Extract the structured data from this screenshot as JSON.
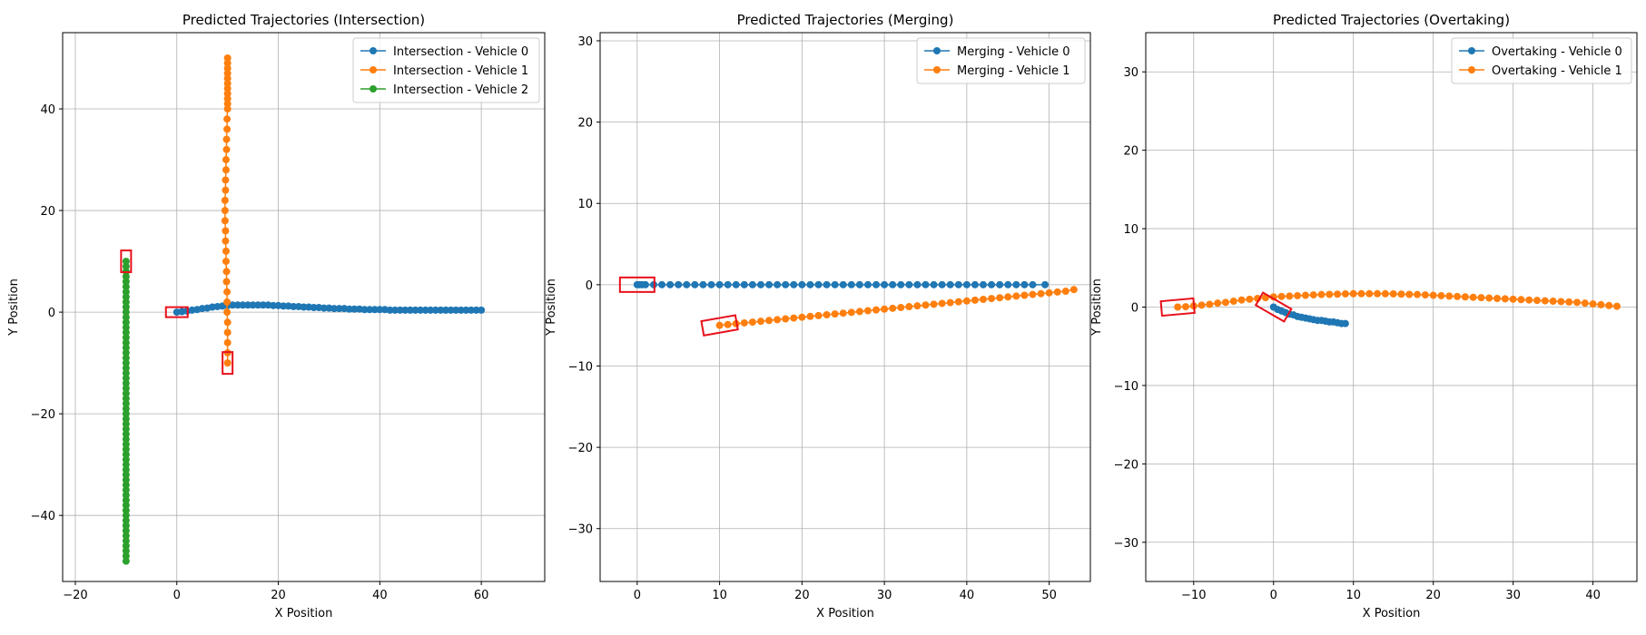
{
  "chart_data": [
    {
      "type": "scatter",
      "title": "Predicted Trajectories (Intersection)",
      "xlabel": "X Position",
      "ylabel": "Y Position",
      "xlim": [
        -22.5,
        72.5
      ],
      "ylim": [
        -53,
        55
      ],
      "xticks": [
        -20,
        0,
        20,
        40,
        60
      ],
      "yticks": [
        -40,
        -20,
        0,
        20,
        40
      ],
      "grid": true,
      "legend_position": "upper right",
      "series": [
        {
          "name": "Intersection - Vehicle 0",
          "color": "#1f77b4",
          "x": [
            0,
            1,
            2,
            3,
            4,
            5,
            6,
            7,
            8,
            9,
            10,
            11,
            12,
            13,
            14,
            15,
            16,
            17,
            18,
            19,
            20,
            21,
            22,
            23,
            24,
            25,
            26,
            27,
            28,
            29,
            30,
            31,
            32,
            33,
            34,
            35,
            36,
            37,
            38,
            39,
            40,
            41,
            42,
            43,
            44,
            45,
            46,
            47,
            48,
            49,
            50,
            51,
            52,
            53,
            54,
            55,
            56,
            57,
            58,
            59,
            60
          ],
          "y": [
            0,
            0.1,
            0.2,
            0.4,
            0.5,
            0.7,
            0.8,
            1.0,
            1.1,
            1.2,
            1.3,
            1.4,
            1.4,
            1.4,
            1.4,
            1.4,
            1.4,
            1.4,
            1.4,
            1.3,
            1.3,
            1.2,
            1.2,
            1.1,
            1.1,
            1.0,
            1.0,
            0.9,
            0.9,
            0.8,
            0.8,
            0.7,
            0.7,
            0.7,
            0.6,
            0.6,
            0.6,
            0.5,
            0.5,
            0.5,
            0.5,
            0.5,
            0.4,
            0.4,
            0.4,
            0.4,
            0.4,
            0.4,
            0.4,
            0.4,
            0.4,
            0.4,
            0.4,
            0.4,
            0.4,
            0.4,
            0.4,
            0.4,
            0.4,
            0.4,
            0.4
          ]
        },
        {
          "name": "Intersection - Vehicle 1",
          "color": "#ff7f0e",
          "x": [
            10.0,
            10.0,
            10.0,
            10.0,
            10.0,
            9.9,
            9.9,
            9.9,
            9.8,
            9.8,
            9.7,
            9.7,
            9.6,
            9.6,
            9.5,
            9.5,
            9.5,
            9.6,
            9.6,
            9.7,
            9.7,
            9.8,
            9.8,
            9.9,
            9.9,
            10.0,
            10.0,
            10.0,
            10.0,
            10.0,
            10.0,
            10.0,
            10.0,
            10.0,
            10.0,
            10.0
          ],
          "y": [
            -10,
            -8,
            -6,
            -4,
            -2,
            0,
            2,
            4,
            6,
            8,
            10,
            12,
            14,
            16,
            18,
            20,
            22,
            24,
            26,
            28,
            30,
            32,
            34,
            36,
            38,
            40,
            41,
            42,
            43,
            44,
            45,
            46,
            47,
            48,
            49,
            50
          ]
        },
        {
          "name": "Intersection - Vehicle 2",
          "color": "#2ca02c",
          "x": [
            -10,
            -10,
            -10,
            -10,
            -10,
            -10,
            -10,
            -10,
            -10,
            -10,
            -10,
            -10,
            -10,
            -10,
            -10,
            -10,
            -10,
            -10,
            -10,
            -10,
            -10,
            -10,
            -10,
            -10,
            -10,
            -10,
            -10,
            -10,
            -10,
            -10,
            -10,
            -10,
            -10,
            -10,
            -10,
            -10,
            -10,
            -10,
            -10,
            -10,
            -10,
            -10,
            -10,
            -10,
            -10,
            -10,
            -10,
            -10,
            -10,
            -10,
            -10,
            -10,
            -10,
            -10,
            -10,
            -10,
            -10,
            -10,
            -10,
            -10
          ],
          "y": [
            10,
            9,
            8,
            7,
            6,
            5,
            4,
            3,
            2,
            1,
            0,
            -1,
            -2,
            -3,
            -4,
            -5,
            -6,
            -7,
            -8,
            -9,
            -10,
            -11,
            -12,
            -13,
            -14,
            -15,
            -16,
            -17,
            -18,
            -19,
            -20,
            -21,
            -22,
            -23,
            -24,
            -25,
            -26,
            -27,
            -28,
            -29,
            -30,
            -31,
            -32,
            -33,
            -34,
            -35,
            -36,
            -37,
            -38,
            -39,
            -40,
            -41,
            -42,
            -43,
            -44,
            -45,
            -46,
            -47,
            -48,
            -49
          ]
        }
      ],
      "boxes": [
        {
          "cx": 0,
          "cy": 0,
          "angle": 0
        },
        {
          "cx": 10,
          "cy": -10,
          "angle": 90
        },
        {
          "cx": -10,
          "cy": 10,
          "angle": 90
        }
      ]
    },
    {
      "type": "scatter",
      "title": "Predicted Trajectories (Merging)",
      "xlabel": "X Position",
      "ylabel": "Y Position",
      "xlim": [
        -4.5,
        55
      ],
      "ylim": [
        -36.5,
        31
      ],
      "xticks": [
        0,
        10,
        20,
        30,
        40,
        50
      ],
      "yticks": [
        -30,
        -20,
        -10,
        0,
        10,
        20,
        30
      ],
      "grid": true,
      "legend_position": "upper right",
      "series": [
        {
          "name": "Merging - Vehicle 0",
          "color": "#1f77b4",
          "x": [
            0,
            0.3,
            0.6,
            1,
            2,
            3,
            4,
            5,
            6,
            7,
            8,
            9,
            10,
            11,
            12,
            13,
            14,
            15,
            16,
            17,
            18,
            19,
            20,
            21,
            22,
            23,
            24,
            25,
            26,
            27,
            28,
            29,
            30,
            31,
            32,
            33,
            34,
            35,
            36,
            37,
            38,
            39,
            40,
            41,
            42,
            43,
            44,
            45,
            46,
            47,
            48,
            49.5
          ],
          "y": [
            0,
            0,
            0,
            0,
            0,
            0,
            0,
            0,
            0,
            0,
            0,
            0,
            0,
            0,
            0,
            0,
            0,
            0,
            0,
            0,
            0,
            0,
            0,
            0,
            0,
            0,
            0,
            0,
            0,
            0,
            0,
            0,
            0,
            0,
            0,
            0,
            0,
            0,
            0,
            0,
            0,
            0,
            0,
            0,
            0,
            0,
            0,
            0,
            0,
            0,
            0,
            0
          ]
        },
        {
          "name": "Merging - Vehicle 1",
          "color": "#ff7f0e",
          "x": [
            10,
            11,
            12,
            13,
            14,
            15,
            16,
            17,
            18,
            19,
            20,
            21,
            22,
            23,
            24,
            25,
            26,
            27,
            28,
            29,
            30,
            31,
            32,
            33,
            34,
            35,
            36,
            37,
            38,
            39,
            40,
            41,
            42,
            43,
            44,
            45,
            46,
            47,
            48,
            49,
            50,
            51,
            52,
            53
          ],
          "y": [
            -5.0,
            -4.9,
            -4.8,
            -4.7,
            -4.6,
            -4.5,
            -4.4,
            -4.3,
            -4.2,
            -4.1,
            -4.0,
            -3.9,
            -3.8,
            -3.7,
            -3.6,
            -3.5,
            -3.4,
            -3.3,
            -3.2,
            -3.1,
            -3.0,
            -2.9,
            -2.8,
            -2.7,
            -2.6,
            -2.5,
            -2.4,
            -2.3,
            -2.2,
            -2.1,
            -2.0,
            -1.9,
            -1.8,
            -1.7,
            -1.6,
            -1.5,
            -1.4,
            -1.3,
            -1.2,
            -1.1,
            -1.0,
            -0.9,
            -0.8,
            -0.6
          ]
        }
      ],
      "boxes": [
        {
          "cx": 0,
          "cy": 0,
          "angle": 0
        },
        {
          "cx": 10,
          "cy": -5,
          "angle": 10
        }
      ]
    },
    {
      "type": "scatter",
      "title": "Predicted Trajectories (Overtaking)",
      "xlabel": "X Position",
      "ylabel": "Y Position",
      "xlim": [
        -16,
        45.5
      ],
      "ylim": [
        -35,
        35
      ],
      "xticks": [
        -10,
        0,
        10,
        20,
        30,
        40
      ],
      "yticks": [
        -30,
        -20,
        -10,
        0,
        10,
        20,
        30
      ],
      "grid": true,
      "legend_position": "upper right",
      "series": [
        {
          "name": "Overtaking - Vehicle 0",
          "color": "#1f77b4",
          "x": [
            0,
            0.5,
            1,
            1.5,
            2,
            2.5,
            3,
            3.5,
            4,
            4.5,
            5,
            5.5,
            6,
            6.5,
            7,
            7.5,
            8,
            8.5,
            9
          ],
          "y": [
            0,
            -0.3,
            -0.5,
            -0.7,
            -0.9,
            -1.0,
            -1.2,
            -1.3,
            -1.4,
            -1.5,
            -1.6,
            -1.7,
            -1.7,
            -1.8,
            -1.9,
            -1.9,
            -2.0,
            -2.1,
            -2.1
          ]
        },
        {
          "name": "Overtaking - Vehicle 1",
          "color": "#ff7f0e",
          "x": [
            -12,
            -11,
            -10,
            -9,
            -8,
            -7,
            -6,
            -5,
            -4,
            -3,
            -2,
            -1,
            0,
            1,
            2,
            3,
            4,
            5,
            6,
            7,
            8,
            9,
            10,
            11,
            12,
            13,
            14,
            15,
            16,
            17,
            18,
            19,
            20,
            21,
            22,
            23,
            24,
            25,
            26,
            27,
            28,
            29,
            30,
            31,
            32,
            33,
            34,
            35,
            36,
            37,
            38,
            39,
            40,
            41,
            42,
            43
          ],
          "y": [
            0,
            0.05,
            0.15,
            0.25,
            0.35,
            0.5,
            0.6,
            0.75,
            0.9,
            1.0,
            1.1,
            1.2,
            1.3,
            1.35,
            1.4,
            1.45,
            1.5,
            1.55,
            1.6,
            1.62,
            1.65,
            1.68,
            1.7,
            1.7,
            1.7,
            1.7,
            1.7,
            1.68,
            1.65,
            1.62,
            1.6,
            1.55,
            1.5,
            1.45,
            1.4,
            1.35,
            1.3,
            1.25,
            1.2,
            1.15,
            1.1,
            1.05,
            1.0,
            0.95,
            0.9,
            0.85,
            0.8,
            0.75,
            0.7,
            0.65,
            0.6,
            0.5,
            0.4,
            0.3,
            0.2,
            0.1
          ]
        }
      ],
      "boxes": [
        {
          "cx": -12,
          "cy": 0,
          "angle": 5
        },
        {
          "cx": 0,
          "cy": 0,
          "angle": -30
        }
      ]
    }
  ]
}
